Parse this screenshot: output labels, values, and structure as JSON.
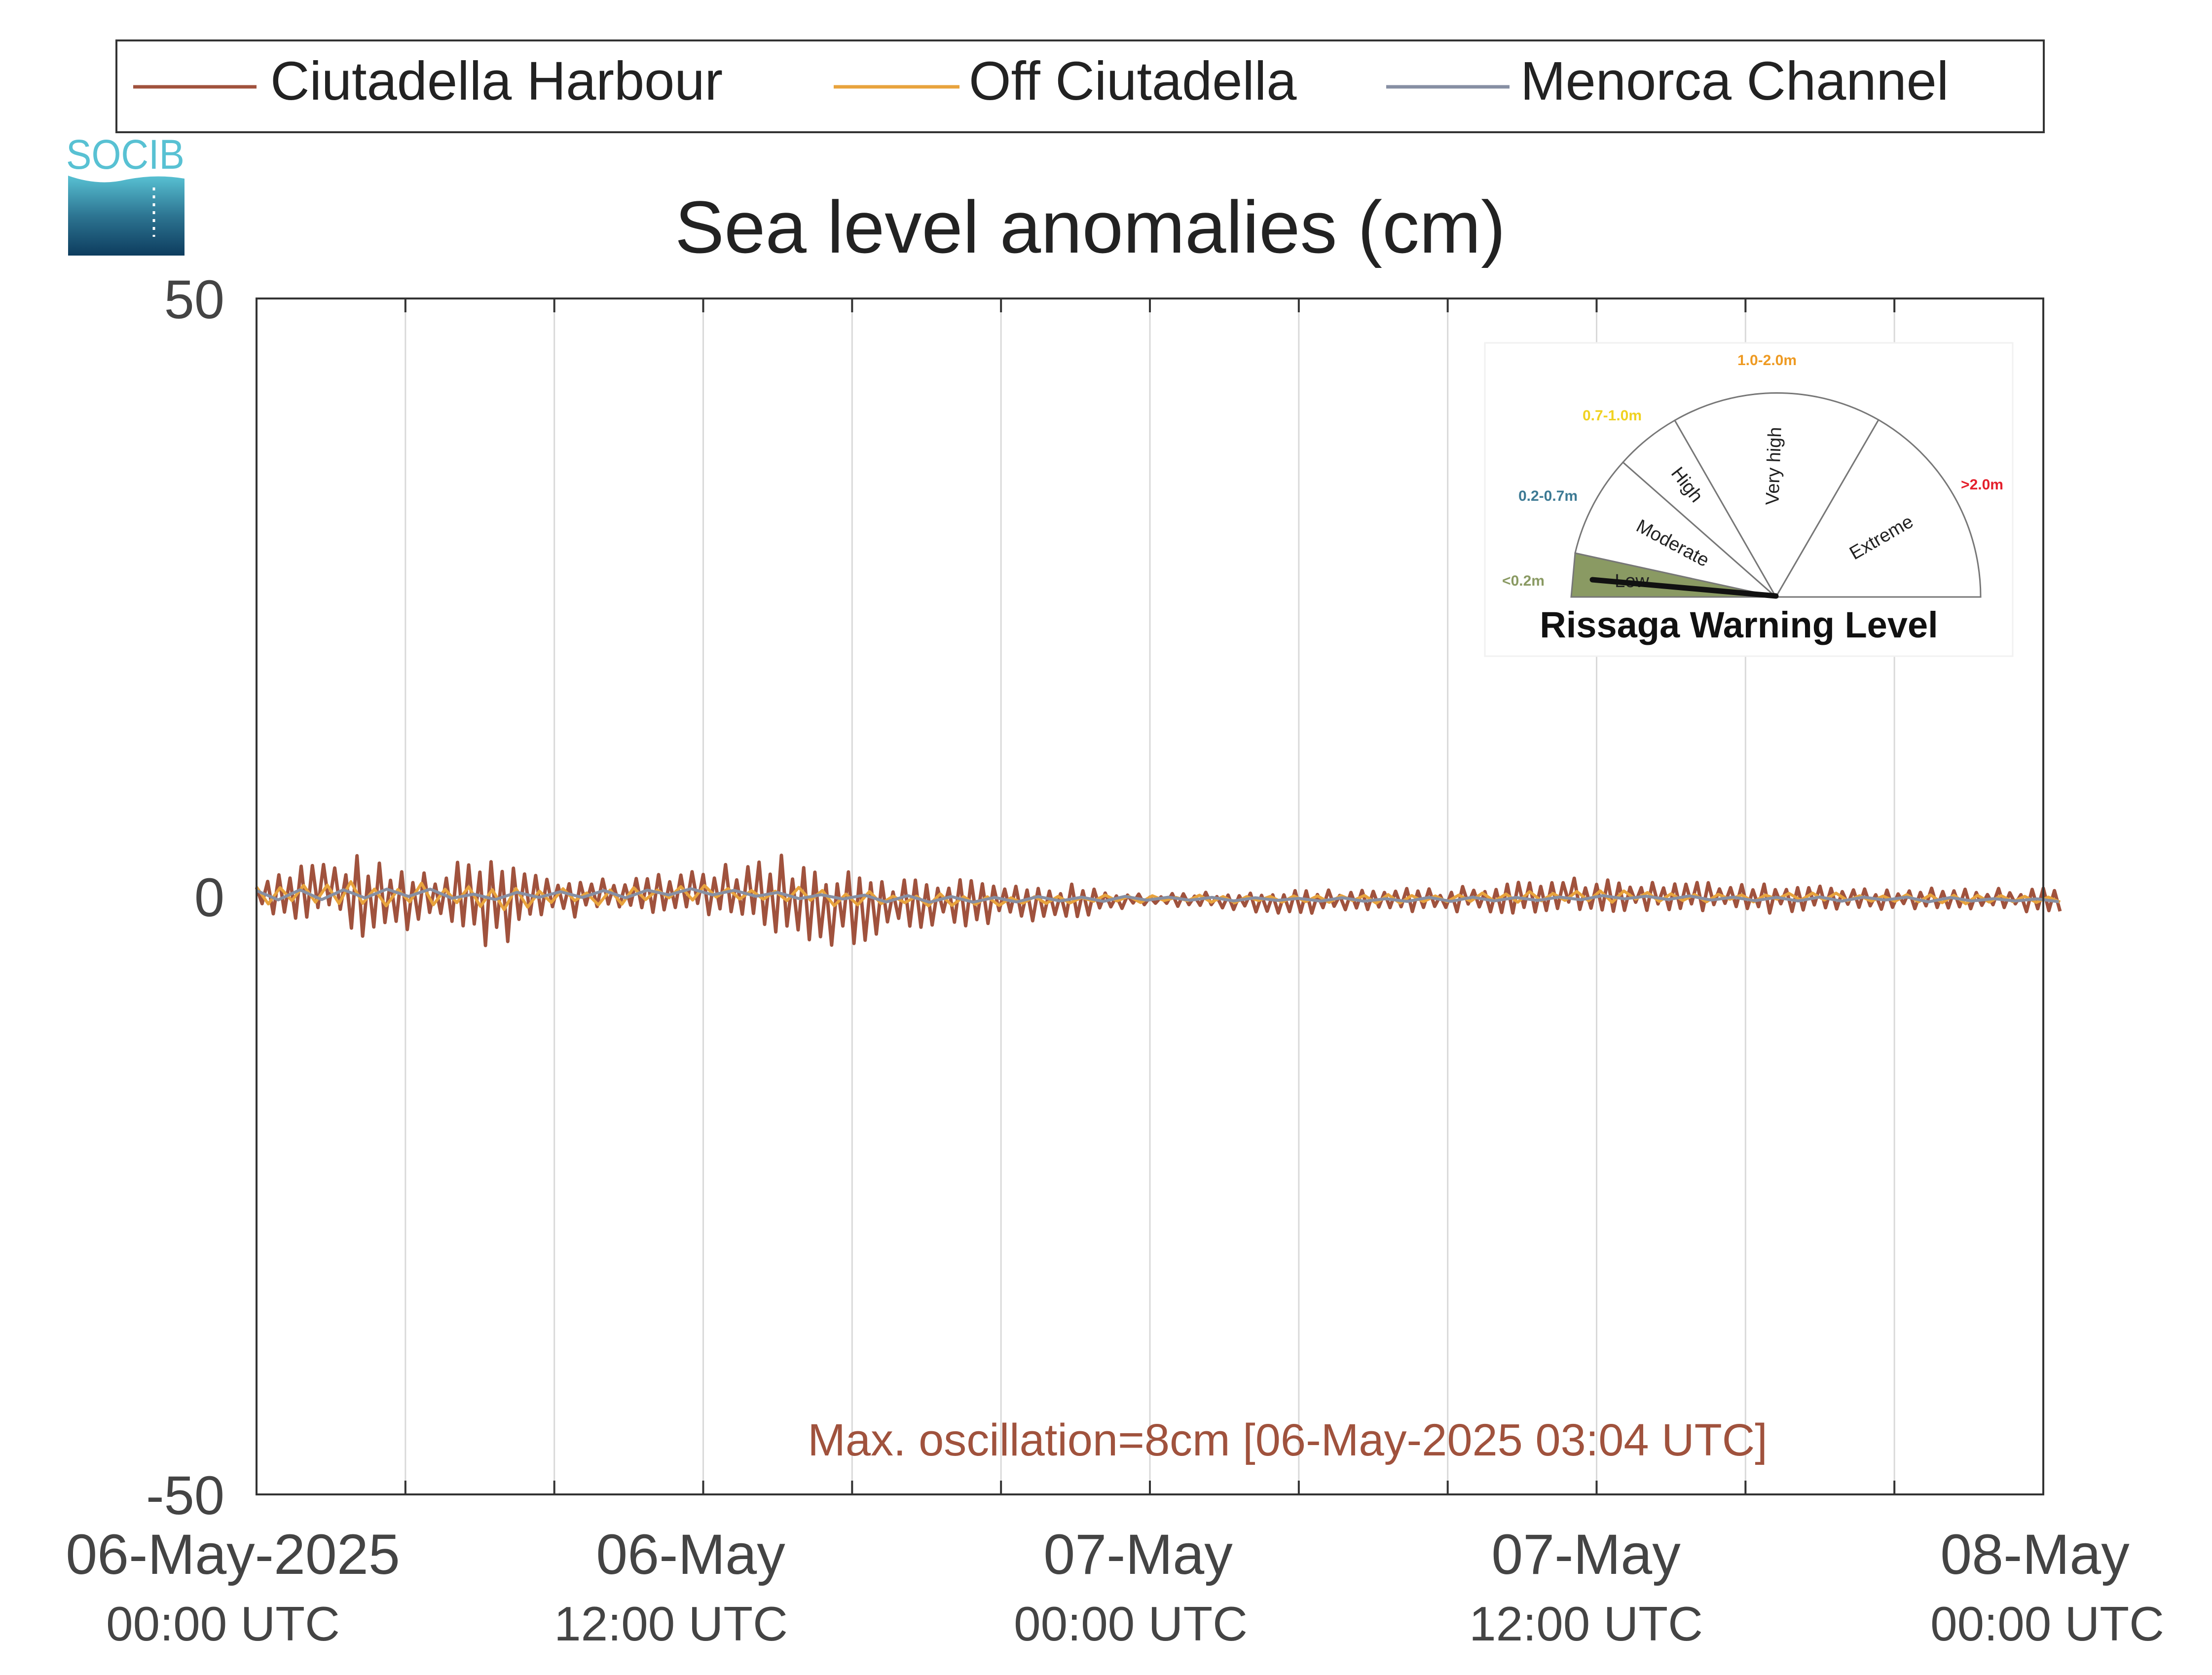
{
  "chart_data": {
    "type": "line",
    "title": "Sea level anomalies (cm)",
    "xlabel": "",
    "ylabel": "",
    "ylim": [
      -50,
      50
    ],
    "y_ticks": [
      "50",
      "0",
      "-50"
    ],
    "x_range": [
      "2025-05-06T00:00",
      "2025-05-08T00:00"
    ],
    "x_tick_labels": [
      {
        "date": "06-May-2025",
        "time": "00:00 UTC"
      },
      {
        "date": "06-May",
        "time": "12:00 UTC"
      },
      {
        "date": "07-May",
        "time": "00:00 UTC"
      },
      {
        "date": "07-May",
        "time": "12:00 UTC"
      },
      {
        "date": "08-May",
        "time": "00:00 UTC"
      }
    ],
    "grid": true,
    "legend_position": "top",
    "annotation": "Max. oscillation=8cm [06-May-2025 03:04 UTC]",
    "series": [
      {
        "name": "Ciutadella Harbour",
        "color": "#a0523d",
        "x": [
          "2025-05-06T00:00",
          "2025-05-06T01:00",
          "2025-05-06T02:00",
          "2025-05-06T03:00",
          "2025-05-06T04:00",
          "2025-05-06T05:00",
          "2025-05-06T06:00",
          "2025-05-06T07:00",
          "2025-05-06T08:00",
          "2025-05-06T09:00",
          "2025-05-06T10:00",
          "2025-05-06T11:00",
          "2025-05-06T12:00",
          "2025-05-06T13:00",
          "2025-05-06T14:00",
          "2025-05-06T15:00",
          "2025-05-06T16:00",
          "2025-05-06T17:00",
          "2025-05-06T18:00",
          "2025-05-06T19:00",
          "2025-05-06T20:00",
          "2025-05-06T21:00",
          "2025-05-06T22:00",
          "2025-05-06T23:00",
          "2025-05-07T00:00",
          "2025-05-07T02:00",
          "2025-05-07T04:00",
          "2025-05-07T06:00",
          "2025-05-07T08:00",
          "2025-05-07T10:00",
          "2025-05-07T12:00",
          "2025-05-07T14:00",
          "2025-05-07T16:00",
          "2025-05-07T18:00",
          "2025-05-07T20:00",
          "2025-05-07T22:00",
          "2025-05-08T00:00",
          "2025-05-08T02:00"
        ],
        "amplitude": [
          1.0,
          2.5,
          2.5,
          4.0,
          2.5,
          2.5,
          4.0,
          3.5,
          1.5,
          2.0,
          1.5,
          2.0,
          2.0,
          2.5,
          3.5,
          3.5,
          4.0,
          2.5,
          2.0,
          2.5,
          1.5,
          2.0,
          1.5,
          0.8,
          0.6,
          0.7,
          1.2,
          1.0,
          1.0,
          1.4,
          1.5,
          1.2,
          1.5,
          1.2,
          0.8,
          1.0,
          1.0,
          1.0
        ],
        "baseline": [
          0.0,
          0.5,
          0.5,
          0.0,
          -0.5,
          0.0,
          -0.5,
          -0.5,
          0.0,
          0.0,
          0.0,
          0.5,
          0.5,
          0.5,
          0.0,
          -0.5,
          -0.5,
          -0.5,
          -0.5,
          -0.5,
          -0.5,
          -0.5,
          -0.5,
          -0.3,
          -0.3,
          -0.3,
          -0.5,
          -0.3,
          -0.3,
          0.0,
          0.2,
          0.0,
          0.0,
          -0.2,
          -0.2,
          -0.2,
          -0.3,
          -0.5
        ]
      },
      {
        "name": "Off Ciutadella",
        "color": "#e8a33d",
        "x": [
          "2025-05-06T00:00",
          "2025-05-06T03:00",
          "2025-05-06T06:00",
          "2025-05-06T09:00",
          "2025-05-06T12:00",
          "2025-05-06T15:00",
          "2025-05-06T18:00",
          "2025-05-06T21:00",
          "2025-05-07T00:00",
          "2025-05-07T06:00",
          "2025-05-07T12:00",
          "2025-05-07T18:00",
          "2025-05-08T00:00",
          "2025-05-08T02:00"
        ],
        "amplitude": [
          0.8,
          1.2,
          1.0,
          0.8,
          0.8,
          0.8,
          0.6,
          0.5,
          0.3,
          0.4,
          0.5,
          0.4,
          0.4,
          0.4
        ],
        "baseline": [
          0.0,
          0.2,
          -0.2,
          0.0,
          0.3,
          0.0,
          -0.3,
          -0.3,
          -0.2,
          -0.2,
          0.0,
          -0.1,
          -0.3,
          -0.4
        ]
      },
      {
        "name": "Menorca Channel",
        "color": "#868fa3",
        "x": [
          "2025-05-06T00:00",
          "2025-05-06T03:00",
          "2025-05-06T06:00",
          "2025-05-06T09:00",
          "2025-05-06T12:00",
          "2025-05-06T15:00",
          "2025-05-06T18:00",
          "2025-05-06T21:00",
          "2025-05-07T00:00",
          "2025-05-07T06:00",
          "2025-05-07T12:00",
          "2025-05-07T18:00",
          "2025-05-08T00:00",
          "2025-05-08T02:00"
        ],
        "amplitude": [
          0.5,
          0.5,
          0.5,
          0.4,
          0.4,
          0.4,
          0.3,
          0.3,
          0.2,
          0.2,
          0.2,
          0.2,
          0.2,
          0.2
        ],
        "baseline": [
          0.0,
          0.3,
          0.0,
          0.2,
          0.3,
          0.0,
          -0.2,
          -0.2,
          -0.2,
          -0.3,
          -0.1,
          -0.2,
          -0.3,
          -0.4
        ]
      }
    ]
  },
  "logo": {
    "text": "SOCIB",
    "color": "#58c1d3"
  },
  "gauge": {
    "title": "Rissaga Warning Level",
    "current_level": "Low",
    "sectors": [
      {
        "name": "Low",
        "range": "<0.2m",
        "color": "#8a9a63"
      },
      {
        "name": "Moderate",
        "range": "0.2-0.7m",
        "color": "#3d7a94"
      },
      {
        "name": "High",
        "range": "0.7-1.0m",
        "color": "#f0d221"
      },
      {
        "name": "Very high",
        "range": "1.0-2.0m",
        "color": "#ee9a22"
      },
      {
        "name": "Extreme",
        "range": ">2.0m",
        "color": "#e4202c"
      }
    ]
  }
}
